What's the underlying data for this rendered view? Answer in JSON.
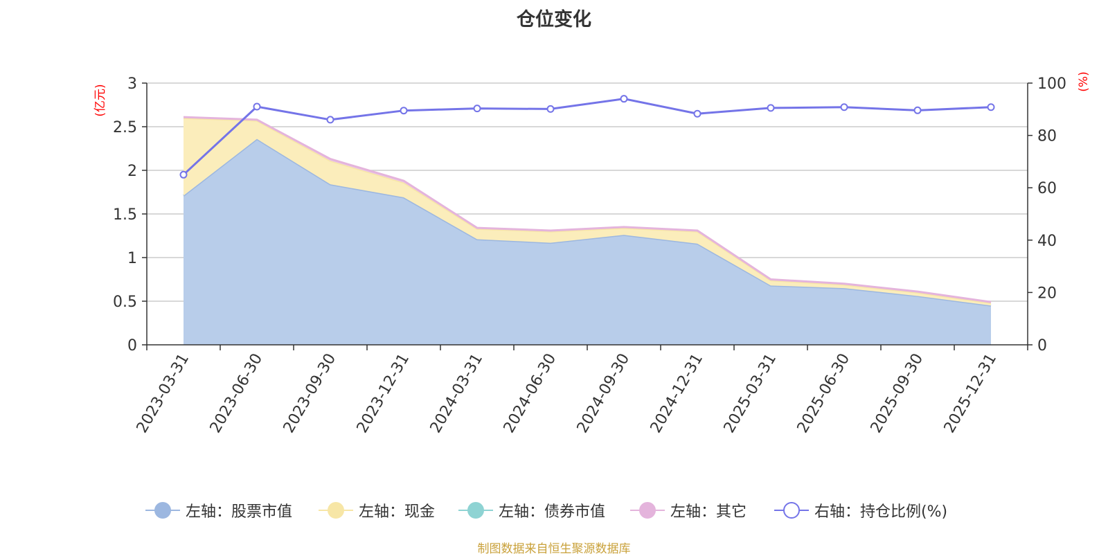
{
  "title": "仓位变化",
  "source_note": "制图数据来自恒生聚源数据库",
  "chart_data": {
    "type": "area",
    "title": "仓位变化",
    "categories": [
      "2023-03-31",
      "2023-06-30",
      "2023-09-30",
      "2023-12-31",
      "2024-03-31",
      "2024-06-30",
      "2024-09-30",
      "2024-12-31",
      "2025-03-31",
      "2025-06-30",
      "2025-09-30",
      "2025-12-31"
    ],
    "left_axis": {
      "label": "(亿元)",
      "range": [
        0,
        3
      ],
      "ticks": [
        "0",
        "0.5",
        "1",
        "1.5",
        "2",
        "2.5",
        "3"
      ],
      "tick_values": [
        0,
        0.5,
        1,
        1.5,
        2,
        2.5,
        3
      ]
    },
    "right_axis": {
      "label": "(%)",
      "range": [
        0,
        100
      ],
      "ticks": [
        "0",
        "20",
        "40",
        "60",
        "80",
        "100"
      ],
      "tick_values": [
        0,
        20,
        40,
        60,
        80,
        100
      ]
    },
    "stacked": true,
    "grid": true,
    "legend_position": "bottom",
    "series": [
      {
        "name": "左轴：股票市值",
        "axis": "left",
        "color": "#9cb7e0",
        "fill": "#b8cdea",
        "values": [
          1.71,
          2.36,
          1.84,
          1.69,
          1.21,
          1.17,
          1.26,
          1.16,
          0.68,
          0.65,
          0.56,
          0.45
        ]
      },
      {
        "name": "左轴：现金",
        "axis": "left",
        "color": "#f7e6a6",
        "fill": "#fbedbb",
        "values": [
          0.89,
          0.21,
          0.27,
          0.17,
          0.12,
          0.13,
          0.08,
          0.14,
          0.06,
          0.04,
          0.04,
          0.03
        ]
      },
      {
        "name": "左轴：债券市值",
        "axis": "left",
        "color": "#8ed3d3",
        "fill": "#8ed3d3",
        "values": [
          0,
          0,
          0,
          0,
          0,
          0,
          0,
          0,
          0,
          0,
          0,
          0
        ]
      },
      {
        "name": "左轴：其它",
        "axis": "left",
        "color": "#e4b4dc",
        "fill": "#ecc9e6",
        "values": [
          0.01,
          0.01,
          0.02,
          0.02,
          0.01,
          0.01,
          0.01,
          0.01,
          0.01,
          0.01,
          0.01,
          0.01
        ]
      },
      {
        "name": "右轴：持仓比例(%)",
        "axis": "right",
        "type": "line",
        "color": "#7474e8",
        "values": [
          65,
          91,
          86,
          89.5,
          90.3,
          90.1,
          94,
          88.3,
          90.5,
          90.8,
          89.6,
          90.8
        ]
      }
    ]
  }
}
